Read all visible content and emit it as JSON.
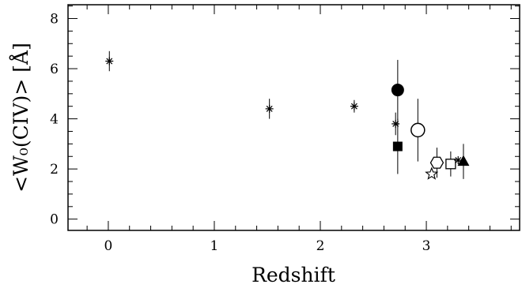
{
  "chart_data": {
    "type": "scatter",
    "xlabel": "Redshift",
    "ylabel": "<W₀(CIV)> [Å]",
    "xlim": [
      -0.38,
      3.88
    ],
    "ylim": [
      -0.45,
      8.55
    ],
    "x_ticks": [
      "0",
      "1",
      "2",
      "3"
    ],
    "y_ticks": [
      "0",
      "2",
      "4",
      "6",
      "8"
    ],
    "grid": false,
    "legend": "none",
    "points": [
      {
        "x": 0.01,
        "y": 6.3,
        "err": 0.4,
        "marker": "asterisk"
      },
      {
        "x": 1.52,
        "y": 4.4,
        "err": 0.4,
        "marker": "asterisk"
      },
      {
        "x": 2.32,
        "y": 4.5,
        "err": 0.25,
        "marker": "asterisk"
      },
      {
        "x": 2.71,
        "y": 3.8,
        "err": 0.45,
        "marker": "asterisk"
      },
      {
        "x": 2.73,
        "y": 5.15,
        "err": 1.2,
        "marker": "filled-circle"
      },
      {
        "x": 2.73,
        "y": 2.9,
        "err": 1.1,
        "marker": "filled-square"
      },
      {
        "x": 2.92,
        "y": 3.55,
        "err": 1.25,
        "marker": "open-circle"
      },
      {
        "x": 3.05,
        "y": 1.8,
        "err": 0.0,
        "marker": "open-star"
      },
      {
        "x": 3.1,
        "y": 2.25,
        "err": 0.6,
        "marker": "open-hexagon"
      },
      {
        "x": 3.23,
        "y": 2.2,
        "err": 0.5,
        "marker": "open-square"
      },
      {
        "x": 3.3,
        "y": 2.35,
        "err": 0.0,
        "marker": "asterisk"
      },
      {
        "x": 3.35,
        "y": 2.3,
        "err": 0.7,
        "marker": "filled-triangle"
      }
    ]
  }
}
